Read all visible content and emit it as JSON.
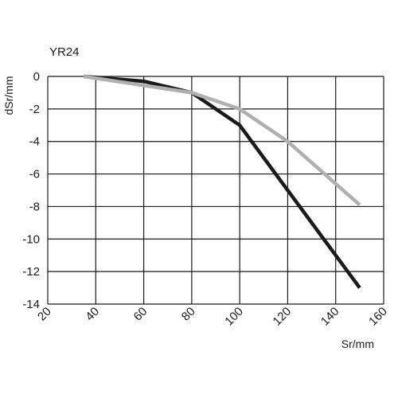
{
  "chart_data": {
    "type": "line",
    "title": "YR24",
    "xlabel": "Sr/mm",
    "ylabel": "dSr/mm",
    "xlim": [
      20,
      160
    ],
    "ylim": [
      -14,
      0
    ],
    "x_ticks": [
      20,
      40,
      60,
      80,
      100,
      120,
      140,
      160
    ],
    "y_ticks": [
      0,
      -2,
      -4,
      -6,
      -8,
      -10,
      -12,
      -14
    ],
    "grid": true,
    "legend": "none",
    "series": [
      {
        "color": "#1a1a1a",
        "points": [
          [
            35,
            0
          ],
          [
            60,
            -0.3
          ],
          [
            80,
            -1
          ],
          [
            100,
            -3
          ],
          [
            120,
            -7
          ],
          [
            150,
            -13
          ]
        ]
      },
      {
        "color": "#b0b0b0",
        "points": [
          [
            35,
            0
          ],
          [
            80,
            -1
          ],
          [
            100,
            -2
          ],
          [
            120,
            -4
          ],
          [
            150,
            -7.9
          ]
        ]
      }
    ]
  }
}
